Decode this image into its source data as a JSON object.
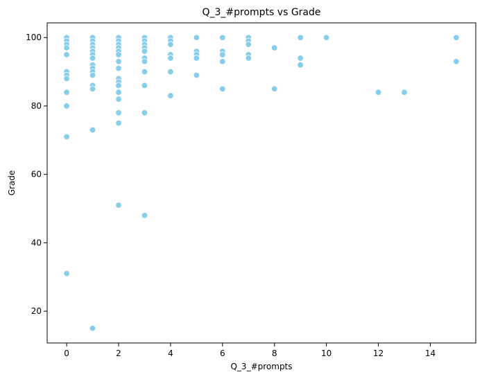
{
  "chart_data": {
    "type": "scatter",
    "title": "Q_3_#prompts vs Grade",
    "xlabel": "Q_3_#prompts",
    "ylabel": "Grade",
    "xlim": [
      -0.75,
      15.75
    ],
    "ylim": [
      10.7,
      104.3
    ],
    "xticks": [
      0,
      2,
      4,
      6,
      8,
      10,
      12,
      14
    ],
    "yticks": [
      20,
      40,
      60,
      80,
      100
    ],
    "grid": false,
    "legend": "none",
    "marker_color": "#87ceeb",
    "points": [
      [
        0,
        100
      ],
      [
        0,
        99
      ],
      [
        0,
        98
      ],
      [
        0,
        97
      ],
      [
        0,
        95
      ],
      [
        0,
        90
      ],
      [
        0,
        89
      ],
      [
        0,
        88
      ],
      [
        0,
        84
      ],
      [
        0,
        80
      ],
      [
        0,
        71
      ],
      [
        0,
        31
      ],
      [
        1,
        100
      ],
      [
        1,
        99
      ],
      [
        1,
        98
      ],
      [
        1,
        97
      ],
      [
        1,
        96
      ],
      [
        1,
        95
      ],
      [
        1,
        94
      ],
      [
        1,
        92
      ],
      [
        1,
        91
      ],
      [
        1,
        90
      ],
      [
        1,
        89
      ],
      [
        1,
        86
      ],
      [
        1,
        85
      ],
      [
        1,
        73
      ],
      [
        1,
        15
      ],
      [
        2,
        100
      ],
      [
        2,
        99
      ],
      [
        2,
        98
      ],
      [
        2,
        97
      ],
      [
        2,
        96
      ],
      [
        2,
        95
      ],
      [
        2,
        93
      ],
      [
        2,
        91
      ],
      [
        2,
        88
      ],
      [
        2,
        87
      ],
      [
        2,
        86
      ],
      [
        2,
        84
      ],
      [
        2,
        82
      ],
      [
        2,
        78
      ],
      [
        2,
        75
      ],
      [
        2,
        51
      ],
      [
        3,
        100
      ],
      [
        3,
        99
      ],
      [
        3,
        98
      ],
      [
        3,
        97
      ],
      [
        3,
        96
      ],
      [
        3,
        94
      ],
      [
        3,
        93
      ],
      [
        3,
        90
      ],
      [
        3,
        86
      ],
      [
        3,
        78
      ],
      [
        3,
        48
      ],
      [
        4,
        100
      ],
      [
        4,
        99
      ],
      [
        4,
        98
      ],
      [
        4,
        95
      ],
      [
        4,
        94
      ],
      [
        4,
        90
      ],
      [
        4,
        83
      ],
      [
        5,
        100
      ],
      [
        5,
        96
      ],
      [
        5,
        95
      ],
      [
        5,
        94
      ],
      [
        5,
        89
      ],
      [
        6,
        100
      ],
      [
        6,
        96
      ],
      [
        6,
        95
      ],
      [
        6,
        93
      ],
      [
        6,
        85
      ],
      [
        7,
        100
      ],
      [
        7,
        99
      ],
      [
        7,
        98
      ],
      [
        7,
        95
      ],
      [
        7,
        94
      ],
      [
        8,
        97
      ],
      [
        8,
        85
      ],
      [
        9,
        100
      ],
      [
        9,
        94
      ],
      [
        9,
        92
      ],
      [
        10,
        100
      ],
      [
        12,
        84
      ],
      [
        13,
        84
      ],
      [
        15,
        100
      ],
      [
        15,
        93
      ]
    ]
  }
}
